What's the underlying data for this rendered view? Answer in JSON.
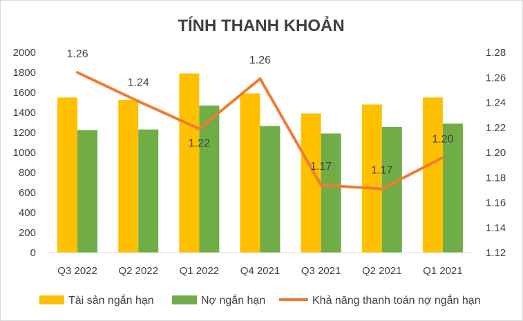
{
  "chart_data": {
    "type": "bar",
    "title": "TÍNH THANH KHOẢN",
    "categories": [
      "Q3 2022",
      "Q2 2022",
      "Q1 2022",
      "Q4 2021",
      "Q3 2021",
      "Q2 2021",
      "Q1 2021"
    ],
    "series": [
      {
        "name": "Tài sản ngắn hạn",
        "type": "bar",
        "axis": "left",
        "color": "#FFC000",
        "values": [
          1550,
          1525,
          1790,
          1590,
          1390,
          1480,
          1550
        ]
      },
      {
        "name": "Nợ ngắn hạn",
        "type": "bar",
        "axis": "left",
        "color": "#70AD47",
        "values": [
          1225,
          1230,
          1470,
          1265,
          1190,
          1255,
          1290
        ]
      },
      {
        "name": "Khả năng thanh toán nợ ngắn hạn",
        "type": "line",
        "axis": "right",
        "color": "#ED7D31",
        "values": [
          1.264,
          1.241,
          1.219,
          1.259,
          1.174,
          1.171,
          1.196
        ],
        "labels": [
          "1.26",
          "1.24",
          "1.22",
          "1.26",
          "1.17",
          "1.17",
          "1.20"
        ]
      }
    ],
    "y_left": {
      "min": 0,
      "max": 2000,
      "step": 200,
      "ticks": [
        "0",
        "200",
        "400",
        "600",
        "800",
        "1000",
        "1200",
        "1400",
        "1600",
        "1800",
        "2000"
      ]
    },
    "y_right": {
      "min": 1.12,
      "max": 1.28,
      "step": 0.02,
      "ticks": [
        "1.12",
        "1.14",
        "1.16",
        "1.18",
        "1.20",
        "1.22",
        "1.24",
        "1.26",
        "1.28"
      ]
    },
    "grid": false,
    "legend_position": "bottom"
  }
}
